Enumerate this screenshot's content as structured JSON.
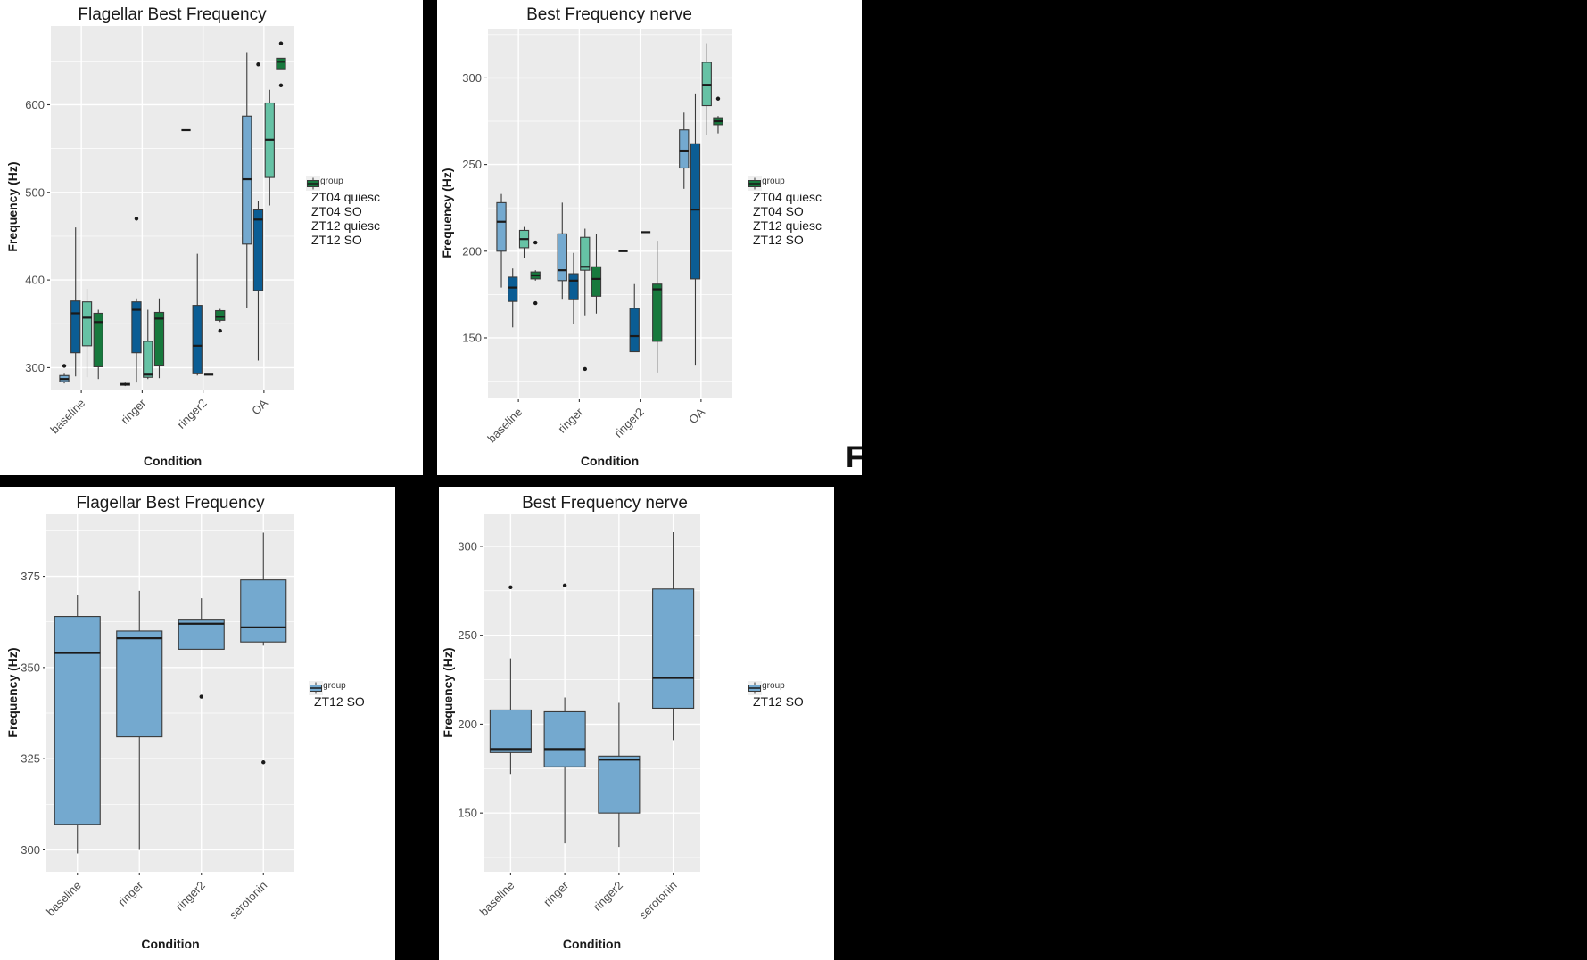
{
  "canvas": {
    "background": "#000000",
    "panel_background": "#EBEBEB",
    "figure_background": "#FFFFFF"
  },
  "palette": {
    "grid": "#FFFFFF",
    "box_stroke": "#3A3A3A",
    "median": "#1A1A1A",
    "outlier": "#1A1A1A",
    "tick_text": "#4D4D4D",
    "title_text": "#1A1A1A"
  },
  "caption_fragment": {
    "text": "F"
  },
  "chart_data": [
    {
      "type": "boxplot",
      "title": "Flagellar Best Frequency",
      "xlabel": "Condition",
      "ylabel": "Frequency (Hz)",
      "legend_title": "plotgroup",
      "legend_position": "right",
      "categories": [
        "baseline",
        "ringer",
        "ringer2",
        "OA"
      ],
      "yticks": [
        300,
        400,
        500,
        600
      ],
      "ylim": [
        275,
        690
      ],
      "grid": true,
      "series": [
        {
          "name": "ZT04 quiesc",
          "color": "#74A9CF",
          "boxes": [
            {
              "lo": 282,
              "q1": 284,
              "med": 287,
              "q3": 291,
              "hi": 293,
              "out": [
                302
              ]
            },
            {
              "lo": 279,
              "q1": 280,
              "med": 281,
              "q3": 282,
              "hi": 283
            },
            {
              "lo": 571,
              "q1": 571,
              "med": 571,
              "q3": 571,
              "hi": 571
            },
            {
              "lo": 368,
              "q1": 441,
              "med": 515,
              "q3": 587,
              "hi": 660
            }
          ]
        },
        {
          "name": "ZT04 SO",
          "color": "#0B5D94",
          "boxes": [
            {
              "lo": 290,
              "q1": 317,
              "med": 362,
              "q3": 376,
              "hi": 460
            },
            {
              "lo": 283,
              "q1": 317,
              "med": 366,
              "q3": 375,
              "hi": 379,
              "out": [
                470
              ]
            },
            {
              "lo": 291,
              "q1": 293,
              "med": 325,
              "q3": 371,
              "hi": 430
            },
            {
              "lo": 308,
              "q1": 388,
              "med": 469,
              "q3": 480,
              "hi": 490,
              "out": [
                646
              ]
            }
          ]
        },
        {
          "name": "ZT12 quiesc",
          "color": "#66C2A5",
          "boxes": [
            {
              "lo": 289,
              "q1": 325,
              "med": 357,
              "q3": 375,
              "hi": 390
            },
            {
              "lo": 287,
              "q1": 289,
              "med": 292,
              "q3": 330,
              "hi": 366
            },
            {
              "lo": 292,
              "q1": 292,
              "med": 292,
              "q3": 292,
              "hi": 292
            },
            {
              "lo": 485,
              "q1": 517,
              "med": 560,
              "q3": 602,
              "hi": 617
            }
          ]
        },
        {
          "name": "ZT12 SO",
          "color": "#17793D",
          "boxes": [
            {
              "lo": 287,
              "q1": 301,
              "med": 352,
              "q3": 362,
              "hi": 366
            },
            {
              "lo": 288,
              "q1": 302,
              "med": 356,
              "q3": 363,
              "hi": 379
            },
            {
              "lo": 352,
              "q1": 354,
              "med": 358,
              "q3": 365,
              "hi": 367,
              "out": [
                342
              ]
            },
            {
              "lo": 641,
              "q1": 641,
              "med": 649,
              "q3": 653,
              "hi": 653,
              "out": [
                670,
                622
              ]
            }
          ]
        }
      ]
    },
    {
      "type": "boxplot",
      "title": "Best Frequency nerve",
      "xlabel": "Condition",
      "ylabel": "Frequency (Hz)",
      "legend_title": "plotgroup",
      "legend_position": "right",
      "categories": [
        "baseline",
        "ringer",
        "ringer2",
        "OA"
      ],
      "yticks": [
        150,
        200,
        250,
        300
      ],
      "ylim": [
        115,
        328
      ],
      "grid": true,
      "series": [
        {
          "name": "ZT04 quiesc",
          "color": "#74A9CF",
          "boxes": [
            {
              "lo": 179,
              "q1": 200,
              "med": 217,
              "q3": 228,
              "hi": 233
            },
            {
              "lo": 172,
              "q1": 183,
              "med": 189,
              "q3": 210,
              "hi": 228
            },
            {
              "lo": 200,
              "q1": 200,
              "med": 200,
              "q3": 200,
              "hi": 200
            },
            {
              "lo": 236,
              "q1": 248,
              "med": 258,
              "q3": 270,
              "hi": 280
            }
          ]
        },
        {
          "name": "ZT04 SO",
          "color": "#0B5D94",
          "boxes": [
            {
              "lo": 156,
              "q1": 171,
              "med": 179,
              "q3": 185,
              "hi": 190
            },
            {
              "lo": 158,
              "q1": 172,
              "med": 183,
              "q3": 187,
              "hi": 199
            },
            {
              "lo": 142,
              "q1": 142,
              "med": 151,
              "q3": 167,
              "hi": 181
            },
            {
              "lo": 134,
              "q1": 184,
              "med": 224,
              "q3": 262,
              "hi": 291
            }
          ]
        },
        {
          "name": "ZT12 quiesc",
          "color": "#66C2A5",
          "boxes": [
            {
              "lo": 196,
              "q1": 202,
              "med": 207,
              "q3": 212,
              "hi": 214
            },
            {
              "lo": 163,
              "q1": 189,
              "med": 191,
              "q3": 208,
              "hi": 213,
              "out": [
                132
              ]
            },
            {
              "lo": 211,
              "q1": 211,
              "med": 211,
              "q3": 211,
              "hi": 211
            },
            {
              "lo": 267,
              "q1": 284,
              "med": 296,
              "q3": 309,
              "hi": 320
            }
          ]
        },
        {
          "name": "ZT12 SO",
          "color": "#17793D",
          "boxes": [
            {
              "lo": 183,
              "q1": 184,
              "med": 186,
              "q3": 188,
              "hi": 189,
              "out": [
                205,
                170
              ]
            },
            {
              "lo": 164,
              "q1": 174,
              "med": 184,
              "q3": 191,
              "hi": 210
            },
            {
              "lo": 130,
              "q1": 148,
              "med": 178,
              "q3": 181,
              "hi": 206
            },
            {
              "lo": 268,
              "q1": 273,
              "med": 275,
              "q3": 277,
              "hi": 278,
              "out": [
                288
              ]
            }
          ]
        }
      ]
    },
    {
      "type": "boxplot",
      "title": "Flagellar Best Frequency",
      "xlabel": "Condition",
      "ylabel": "Frequency (Hz)",
      "legend_title": "plotgroup",
      "legend_position": "right",
      "categories": [
        "baseline",
        "ringer",
        "ringer2",
        "serotonin"
      ],
      "yticks": [
        300,
        325,
        350,
        375
      ],
      "ylim": [
        294,
        392
      ],
      "grid": true,
      "series": [
        {
          "name": "ZT12 SO",
          "color": "#74A9CF",
          "boxes": [
            {
              "lo": 299,
              "q1": 307,
              "med": 354,
              "q3": 364,
              "hi": 370
            },
            {
              "lo": 300,
              "q1": 331,
              "med": 358,
              "q3": 360,
              "hi": 371
            },
            {
              "lo": 355,
              "q1": 355,
              "med": 362,
              "q3": 363,
              "hi": 369,
              "out": [
                342
              ]
            },
            {
              "lo": 356,
              "q1": 357,
              "med": 361,
              "q3": 374,
              "hi": 387,
              "out": [
                324
              ]
            }
          ]
        }
      ]
    },
    {
      "type": "boxplot",
      "title": "Best Frequency nerve",
      "xlabel": "Condition",
      "ylabel": "Frequency (Hz)",
      "legend_title": "plotgroup",
      "legend_position": "right",
      "categories": [
        "baseline",
        "ringer",
        "ringer2",
        "serotonin"
      ],
      "yticks": [
        150,
        200,
        250,
        300
      ],
      "ylim": [
        117,
        318
      ],
      "grid": true,
      "series": [
        {
          "name": "ZT12 SO",
          "color": "#74A9CF",
          "boxes": [
            {
              "lo": 172,
              "q1": 184,
              "med": 186,
              "q3": 208,
              "hi": 237,
              "out": [
                277
              ]
            },
            {
              "lo": 133,
              "q1": 176,
              "med": 186,
              "q3": 207,
              "hi": 215,
              "out": [
                278
              ]
            },
            {
              "lo": 131,
              "q1": 150,
              "med": 180,
              "q3": 182,
              "hi": 212
            },
            {
              "lo": 191,
              "q1": 209,
              "med": 226,
              "q3": 276,
              "hi": 308
            }
          ]
        }
      ]
    }
  ]
}
